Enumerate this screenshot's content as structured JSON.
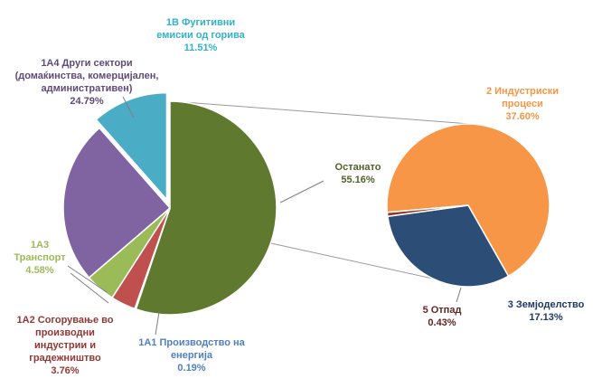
{
  "chart_data": {
    "type": "pie",
    "subtype": "pie-of-pie",
    "legend": "none",
    "main_pie": [
      {
        "name": "Останато",
        "value": 55.16,
        "display": "55.16%",
        "color": "#5f7a2e"
      },
      {
        "name": "1А1 Производство  на енергија",
        "value": 0.19,
        "display": "0.19%",
        "color": "#4f81bd"
      },
      {
        "name": "1А2 Согорување  во производни индустрии  и градежништво",
        "value": 3.76,
        "display": "3.76%",
        "color": "#c0504d"
      },
      {
        "name": "1А3 Транспорт",
        "value": 4.58,
        "display": "4.58%",
        "color": "#9bbb59"
      },
      {
        "name": "1А4 Други сектори (домаќинства,  комерцијален, административен)",
        "value": 24.79,
        "display": "24.79%",
        "color": "#8064a2"
      },
      {
        "name": "1B Фугитивни емисии од горива",
        "value": 11.51,
        "display": "11.51%",
        "color": "#4bacc6"
      }
    ],
    "secondary_pie": [
      {
        "name": "2 Индустриски процеси",
        "value": 37.6,
        "display": "37.60%",
        "color": "#f79646"
      },
      {
        "name": "3 Земјоделство",
        "value": 17.13,
        "display": "17.13%",
        "color": "#2c4d75"
      },
      {
        "name": "5 Отпад",
        "value": 0.43,
        "display": "0.43%",
        "color": "#8b3a2a"
      }
    ]
  },
  "labels": {
    "ostanato": {
      "lines": [
        "Останато"
      ],
      "value": "55.16%"
    },
    "a1": {
      "lines": [
        "1А1 Производство  на",
        "енергија"
      ],
      "value": "0.19%"
    },
    "a2": {
      "lines": [
        "1А2 Согорување  во",
        "производни",
        "индустрии  и",
        "градежништво"
      ],
      "value": "3.76%"
    },
    "a3": {
      "lines": [
        "1А3",
        "Транспорт"
      ],
      "value": "4.58%"
    },
    "a4": {
      "lines": [
        "1А4 Други сектори",
        "(домаќинства,  комерцијален,",
        "административен)"
      ],
      "value": "24.79%"
    },
    "b1": {
      "lines": [
        "1B Фугитивни",
        "емисии  од горива"
      ],
      "value": "11.51%"
    },
    "ind": {
      "lines": [
        "2 Индустриски",
        "процеси"
      ],
      "value": "37.60%"
    },
    "agr": {
      "lines": [
        "3 Земјоделство"
      ],
      "value": "17.13%"
    },
    "waste": {
      "lines": [
        "5 Отпад"
      ],
      "value": "0.43%"
    }
  }
}
